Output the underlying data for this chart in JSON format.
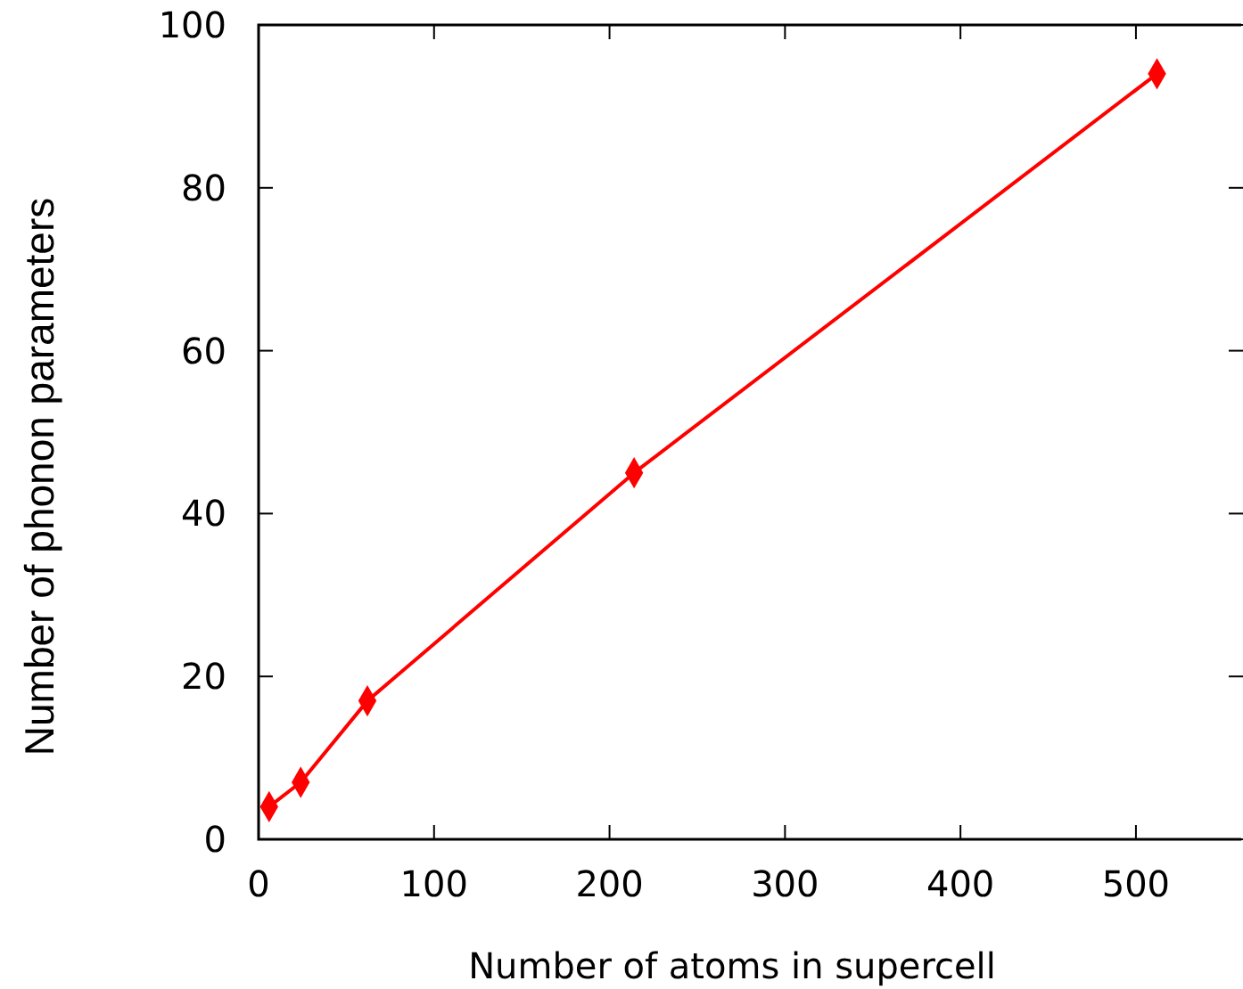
{
  "chart_data": {
    "type": "line",
    "xlabel": "Number of atoms in supercell",
    "ylabel": "Number of phonon parameters",
    "x": [
      6,
      24,
      62,
      214,
      512
    ],
    "series": [
      {
        "color": "#ff0000",
        "values": [
          4,
          7,
          17,
          45,
          94
        ]
      }
    ],
    "xlim": [
      0,
      560
    ],
    "xticks": [
      0,
      100,
      200,
      300,
      400,
      500
    ],
    "ylim": [
      0,
      100
    ],
    "yticks": [
      0,
      20,
      40,
      60,
      80,
      100
    ],
    "marker": "diamond",
    "line_style": "solid",
    "grid": false
  }
}
